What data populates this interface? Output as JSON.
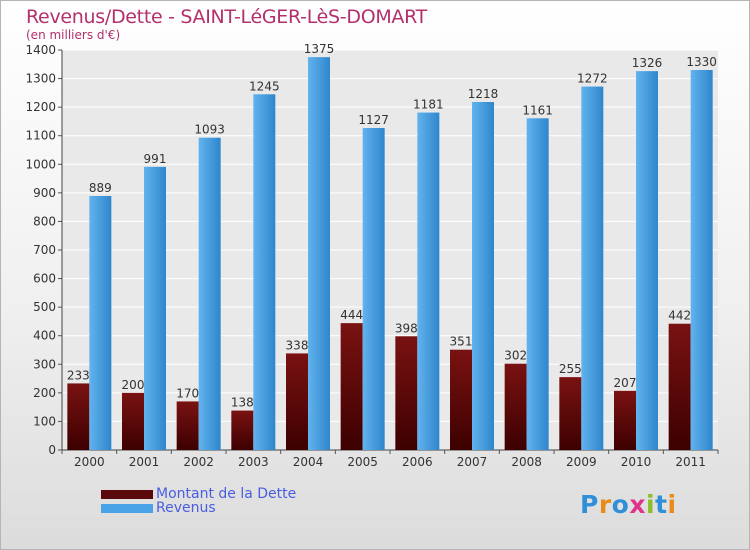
{
  "title": "Revenus/Dette - SAINT-LéGER-LèS-DOMART",
  "subtitle": "(en milliers d'€)",
  "logo": {
    "text": "Proxiti"
  },
  "colors": {
    "dette_top": "#7a1212",
    "dette_bottom": "#3d0000",
    "revenus_top": "#62b3ee",
    "revenus_bottom": "#2a7fc4",
    "title": "#b3306c",
    "legend_text": "#4a5de0"
  },
  "chart_data": {
    "type": "bar",
    "title": "Revenus/Dette - SAINT-LéGER-LèS-DOMART",
    "subtitle": "(en milliers d'€)",
    "categories": [
      "2000",
      "2001",
      "2002",
      "2003",
      "2004",
      "2005",
      "2006",
      "2007",
      "2008",
      "2009",
      "2010",
      "2011"
    ],
    "series": [
      {
        "name": "Montant de la Dette",
        "values": [
          233,
          200,
          170,
          138,
          338,
          444,
          398,
          351,
          302,
          255,
          207,
          442
        ]
      },
      {
        "name": "Revenus",
        "values": [
          889,
          991,
          1093,
          1245,
          1375,
          1127,
          1181,
          1218,
          1161,
          1272,
          1326,
          1330
        ]
      }
    ],
    "ylim": [
      0,
      1400
    ],
    "yticks": [
      0,
      100,
      200,
      300,
      400,
      500,
      600,
      700,
      800,
      900,
      1000,
      1100,
      1200,
      1300,
      1400
    ],
    "grid": true,
    "legend_position": "bottom-left"
  }
}
